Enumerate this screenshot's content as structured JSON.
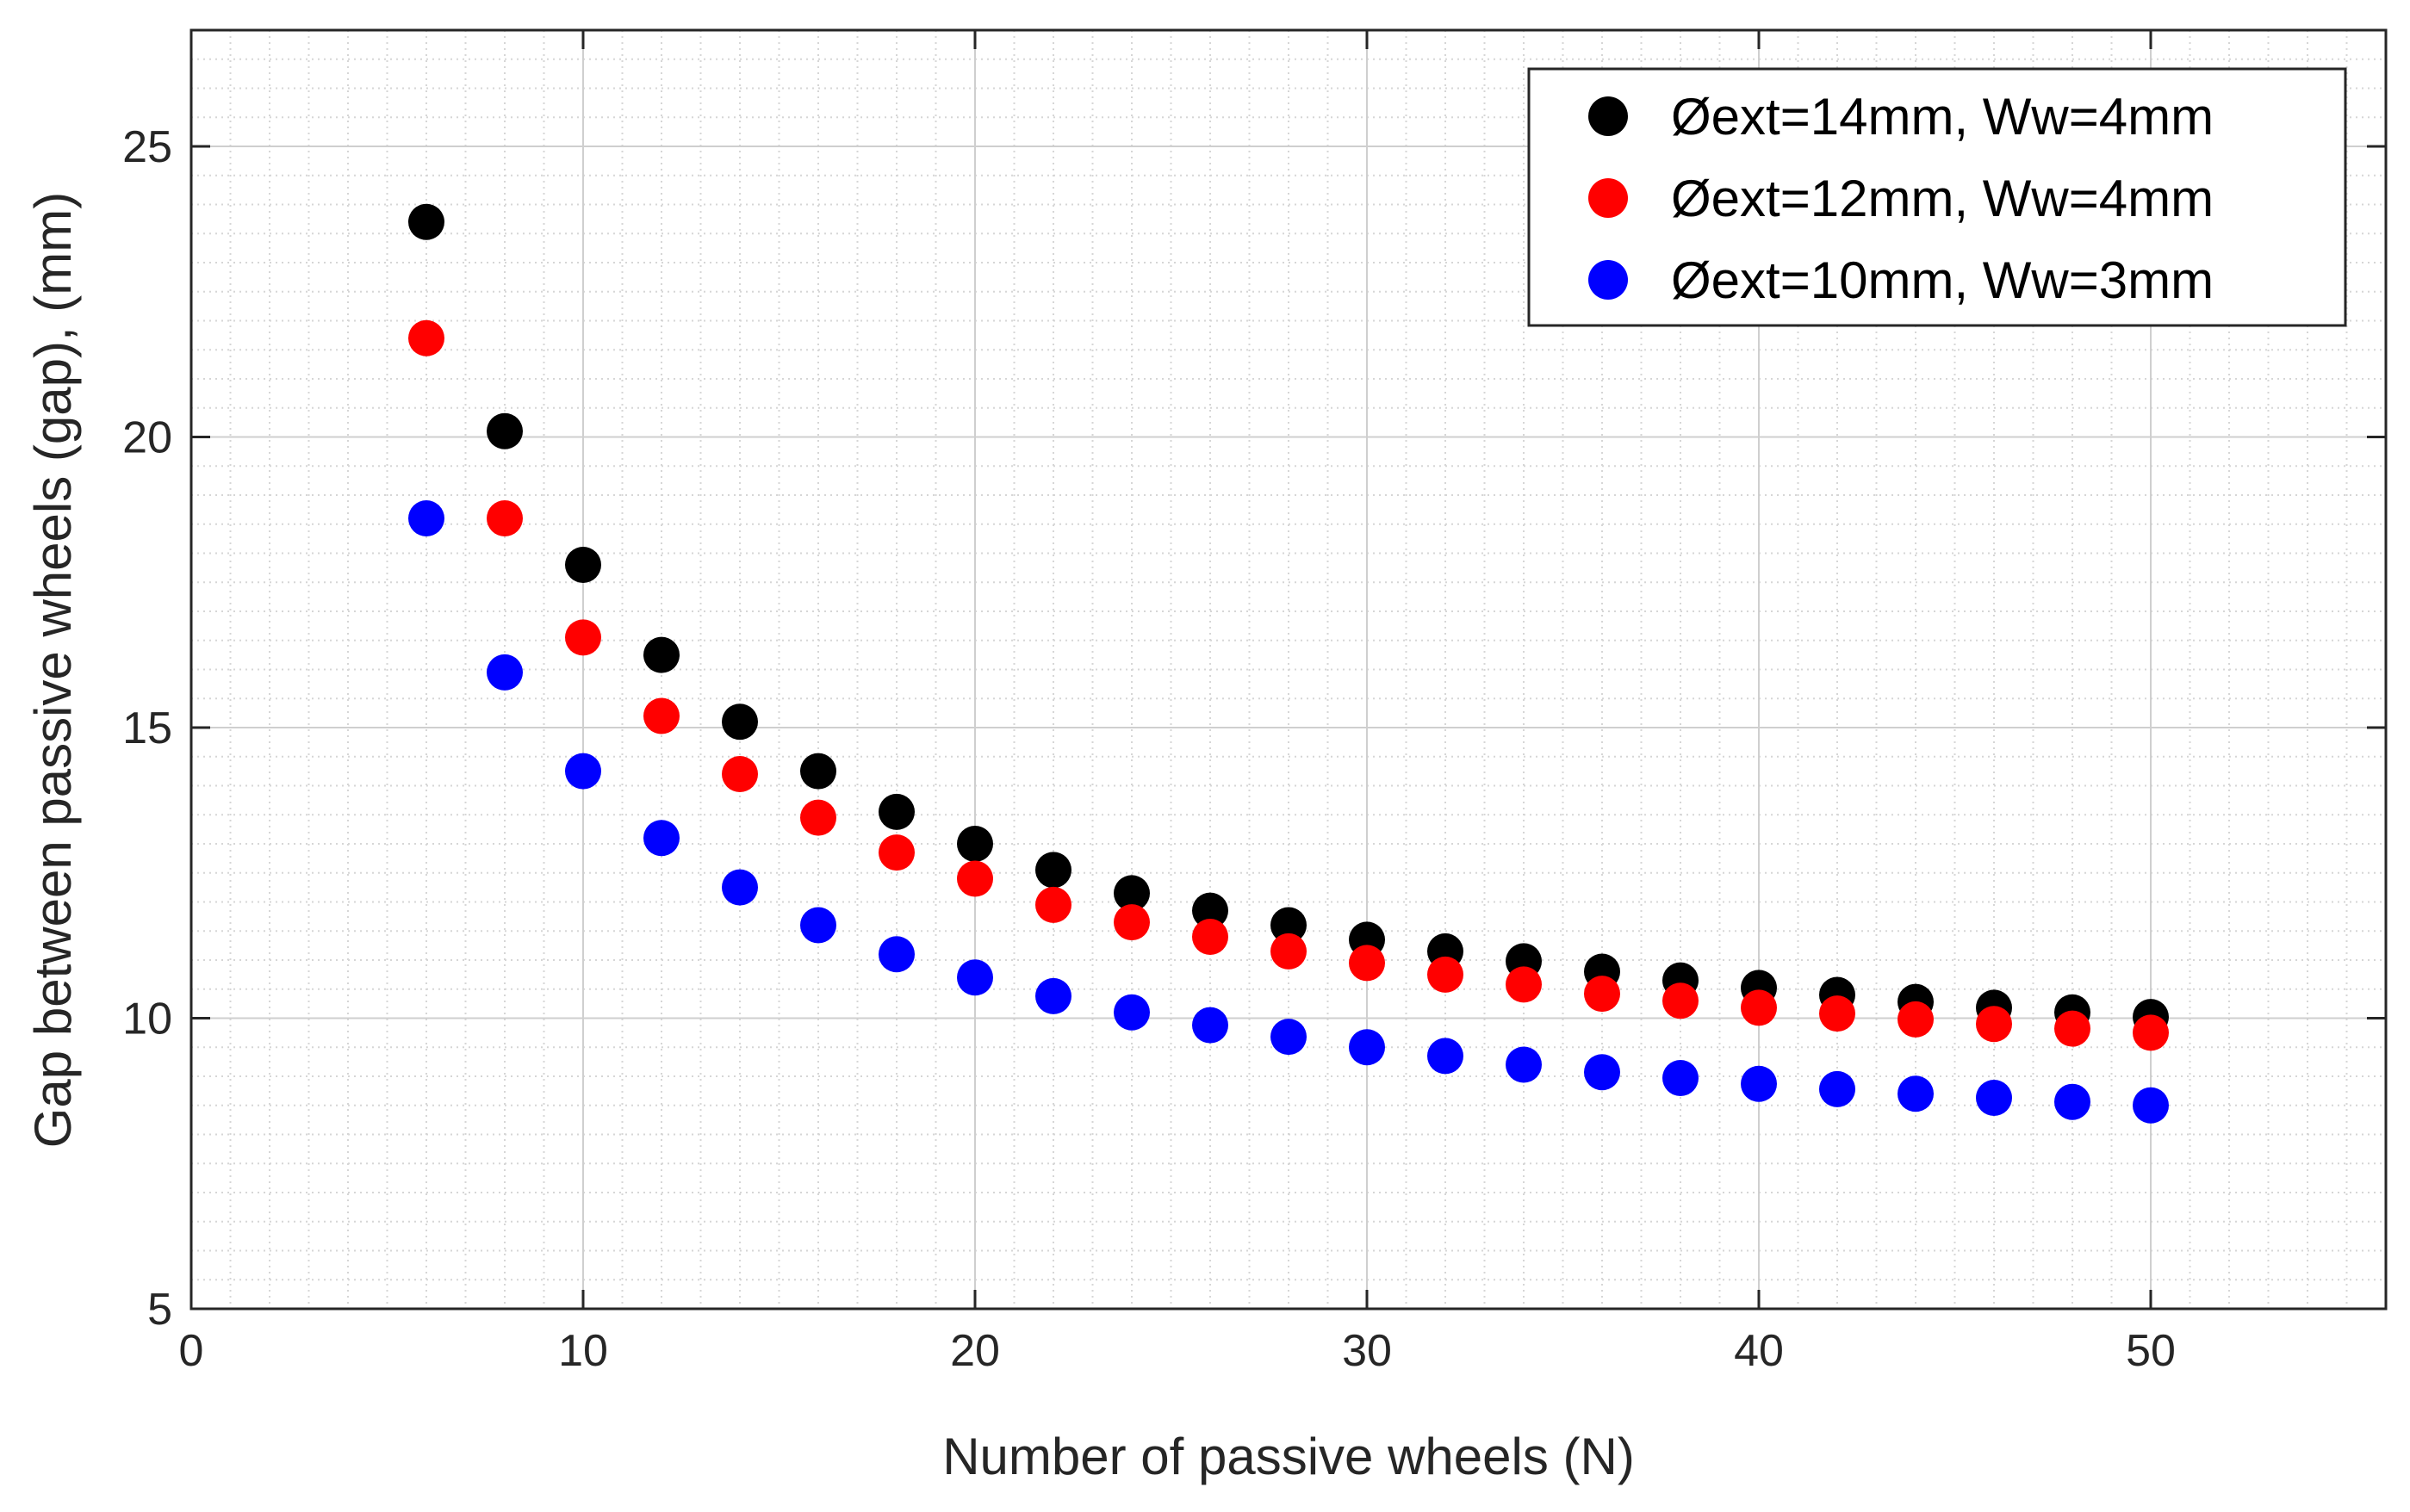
{
  "chart_data": {
    "type": "scatter",
    "title": "",
    "xlabel": "Number of passive wheels (N)",
    "ylabel": "Gap between passive wheels (gap), (mm)",
    "xlim": [
      0,
      56
    ],
    "ylim": [
      5,
      27
    ],
    "xticks": [
      0,
      10,
      20,
      30,
      40,
      50
    ],
    "yticks": [
      5,
      10,
      15,
      20,
      25
    ],
    "xtick_labels": [
      "0",
      "10",
      "20",
      "30",
      "40",
      "50"
    ],
    "ytick_labels": [
      "5",
      "10",
      "15",
      "20",
      "25"
    ],
    "grid": true,
    "minor_grid": true,
    "legend_position": "top-right",
    "x": [
      6,
      8,
      10,
      12,
      14,
      16,
      18,
      20,
      22,
      24,
      26,
      28,
      30,
      32,
      34,
      36,
      38,
      40,
      42,
      44,
      46,
      48,
      50
    ],
    "series": [
      {
        "name": "Øext=14mm, Ww=4mm",
        "color": "#000000",
        "values": [
          23.7,
          20.1,
          17.8,
          16.25,
          15.1,
          14.25,
          13.55,
          13.0,
          12.55,
          12.15,
          11.85,
          11.6,
          11.35,
          11.15,
          10.98,
          10.8,
          10.65,
          10.52,
          10.4,
          10.28,
          10.18,
          10.1,
          10.02
        ]
      },
      {
        "name": "Øext=12mm, Ww=4mm",
        "color": "#ff0000",
        "values": [
          21.7,
          18.6,
          16.55,
          15.2,
          14.2,
          13.45,
          12.85,
          12.4,
          11.95,
          11.65,
          11.4,
          11.15,
          10.95,
          10.75,
          10.58,
          10.42,
          10.3,
          10.18,
          10.08,
          9.98,
          9.9,
          9.82,
          9.75
        ]
      },
      {
        "name": "Øext=10mm, Ww=3mm",
        "color": "#0000ff",
        "values": [
          18.6,
          15.95,
          14.25,
          13.1,
          12.25,
          11.6,
          11.1,
          10.7,
          10.38,
          10.1,
          9.88,
          9.68,
          9.5,
          9.35,
          9.2,
          9.07,
          8.97,
          8.87,
          8.78,
          8.7,
          8.63,
          8.56,
          8.5
        ]
      }
    ]
  }
}
